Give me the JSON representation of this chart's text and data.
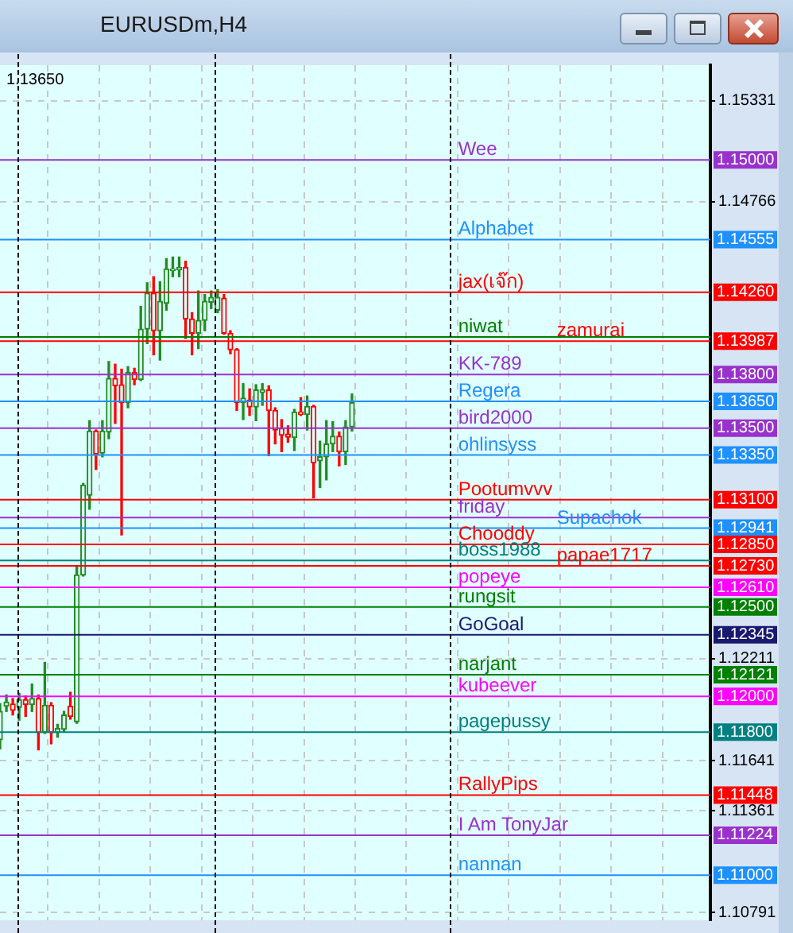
{
  "chart_data": {
    "type": "candlestick",
    "title": "EURUSDm,H4",
    "categories": [
      null,
      null,
      null,
      null,
      null,
      null,
      null,
      null,
      null,
      null,
      null,
      null,
      null,
      null,
      null,
      null,
      null,
      null,
      null,
      null,
      null,
      null,
      null,
      null,
      null,
      null,
      null,
      null,
      null,
      null,
      null,
      null,
      null,
      null,
      null,
      null,
      null,
      null,
      null,
      null,
      null,
      null,
      null,
      null,
      null,
      null,
      null,
      null,
      null,
      null,
      null,
      null,
      null,
      null,
      null,
      null,
      null,
      null,
      null,
      null,
      null,
      null,
      null,
      null,
      null,
      null,
      null,
      null,
      null,
      null,
      null,
      null,
      null,
      null,
      null,
      null,
      null,
      null,
      null,
      null,
      null,
      null,
      null,
      null,
      null,
      null,
      null,
      null,
      null,
      null,
      null,
      null,
      null,
      null,
      null,
      null,
      null,
      null,
      null,
      null,
      null,
      null,
      null,
      null,
      null,
      null,
      null,
      null,
      null,
      null,
      null,
      null
    ],
    "ohlc": [
      [
        1.11758,
        1.11959,
        1.11706,
        1.11916
      ],
      [
        1.11945,
        1.12008,
        1.11916,
        1.11968
      ],
      [
        1.11957,
        1.11988,
        1.11896,
        1.11922
      ],
      [
        1.11939,
        1.12017,
        1.11867,
        1.11982
      ],
      [
        1.11982,
        1.12003,
        1.11888,
        1.11954
      ],
      [
        1.11954,
        1.12069,
        1.11916,
        1.11988
      ],
      [
        1.11988,
        1.12008,
        1.11701,
        1.11798
      ],
      [
        1.11798,
        1.1219,
        1.11793,
        1.11951
      ],
      [
        1.11951,
        1.11965,
        1.11735,
        1.11798
      ],
      [
        1.11798,
        1.11844,
        1.11772,
        1.11821
      ],
      [
        1.11816,
        1.11916,
        1.11801,
        1.11896
      ],
      [
        1.11945,
        1.12023,
        1.11873,
        1.11888
      ],
      [
        1.11859,
        1.1273,
        1.1185,
        1.12679
      ],
      [
        1.12679,
        1.13191,
        1.12673,
        1.13182
      ],
      [
        1.13125,
        1.13542,
        1.13047,
        1.13484
      ],
      [
        1.13484,
        1.1349,
        1.13269,
        1.13355
      ],
      [
        1.13361,
        1.13542,
        1.1334,
        1.13484
      ],
      [
        1.13479,
        1.13873,
        1.13441,
        1.13778
      ],
      [
        1.13778,
        1.13858,
        1.13527,
        1.13737
      ],
      [
        1.13743,
        1.1383,
        1.12903,
        1.13643
      ],
      [
        1.13643,
        1.13844,
        1.13614,
        1.13812
      ],
      [
        1.13812,
        1.13835,
        1.13743,
        1.13772
      ],
      [
        1.13772,
        1.14181,
        1.13766,
        1.14054
      ],
      [
        1.14054,
        1.14313,
        1.13973,
        1.14255
      ],
      [
        1.14255,
        1.14347,
        1.1391,
        1.14045
      ],
      [
        1.14045,
        1.14319,
        1.13881,
        1.14209
      ],
      [
        1.14198,
        1.14448,
        1.1416,
        1.14391
      ],
      [
        1.14382,
        1.14457,
        1.14347,
        1.14391
      ],
      [
        1.14385,
        1.14457,
        1.14347,
        1.14399
      ],
      [
        1.14399,
        1.14434,
        1.14002,
        1.14111
      ],
      [
        1.14111,
        1.14146,
        1.1391,
        1.14031
      ],
      [
        1.14031,
        1.14267,
        1.13945,
        1.14103
      ],
      [
        1.14103,
        1.14247,
        1.14045,
        1.14209
      ],
      [
        1.14204,
        1.14267,
        1.14169,
        1.14232
      ],
      [
        1.1416,
        1.14275,
        1.14146,
        1.14232
      ],
      [
        1.14227,
        1.14247,
        1.14025,
        1.14031
      ],
      [
        1.14031,
        1.14045,
        1.13916,
        1.13939
      ],
      [
        1.13939,
        1.13945,
        1.13599,
        1.13643
      ],
      [
        1.13643,
        1.13749,
        1.13548,
        1.13668
      ],
      [
        1.13657,
        1.1372,
        1.13571,
        1.13619
      ],
      [
        1.13619,
        1.13743,
        1.13542,
        1.13714
      ],
      [
        1.137,
        1.13749,
        1.13628,
        1.13714
      ],
      [
        1.13714,
        1.13737,
        1.13346,
        1.13599
      ],
      [
        1.13599,
        1.13614,
        1.13412,
        1.1349
      ],
      [
        1.13499,
        1.13548,
        1.13369,
        1.13461
      ],
      [
        1.13467,
        1.13513,
        1.13421,
        1.1345
      ],
      [
        1.13447,
        1.13605,
        1.13375,
        1.13591
      ],
      [
        1.13591,
        1.13671,
        1.13571,
        1.13576
      ],
      [
        1.13576,
        1.1368,
        1.1349,
        1.13622
      ],
      [
        1.13622,
        1.13628,
        1.1311,
        1.13306
      ],
      [
        1.13317,
        1.13427,
        1.13168,
        1.1334
      ],
      [
        1.1334,
        1.13542,
        1.13211,
        1.13412
      ],
      [
        1.13412,
        1.13536,
        1.13369,
        1.13455
      ],
      [
        1.13455,
        1.13479,
        1.13289,
        1.13369
      ],
      [
        1.13369,
        1.13542,
        1.13297,
        1.13507
      ],
      [
        1.13507,
        1.13691,
        1.13484,
        1.13643
      ],
      null,
      null,
      null,
      null,
      null,
      null,
      null,
      null,
      null,
      null,
      null,
      null,
      null,
      null,
      null,
      null,
      null,
      null,
      null,
      null,
      null,
      null,
      null,
      null,
      null,
      null,
      null,
      null,
      null,
      null,
      null,
      null,
      null,
      null,
      null,
      null,
      null,
      null,
      null,
      null,
      null,
      null,
      null,
      null,
      null,
      null,
      null,
      null,
      null,
      null,
      null,
      null,
      null,
      null,
      null,
      null
    ],
    "colors": [
      "#228b22",
      "#228b22",
      "#ff0000",
      "#228b22",
      "#ff0000",
      "#228b22",
      "#ff0000",
      "#228b22",
      "#ff0000",
      "#228b22",
      "#228b22",
      "#ff0000",
      "#228b22",
      "#228b22",
      "#228b22",
      "#ff0000",
      "#228b22",
      "#228b22",
      "#ff0000",
      "#ff0000",
      "#228b22",
      "#ff0000",
      "#228b22",
      "#228b22",
      "#ff0000",
      "#228b22",
      "#228b22",
      "#228b22",
      "#228b22",
      "#ff0000",
      "#ff0000",
      "#228b22",
      "#228b22",
      "#228b22",
      "#228b22",
      "#ff0000",
      "#ff0000",
      "#ff0000",
      "#228b22",
      "#ff0000",
      "#228b22",
      "#228b22",
      "#ff0000",
      "#ff0000",
      "#ff0000",
      "#ff0000",
      "#228b22",
      "#ff0000",
      "#228b22",
      "#ff0000",
      "#228b22",
      "#228b22",
      "#228b22",
      "#ff0000",
      "#228b22",
      "#228b22",
      null,
      null,
      null,
      null,
      null,
      null,
      null,
      null,
      null,
      null,
      null,
      null,
      null,
      null,
      null,
      null,
      null,
      null,
      null,
      null,
      null,
      null,
      null,
      null,
      null,
      null,
      null,
      null,
      null,
      null,
      null,
      null,
      null,
      null,
      null,
      null,
      null,
      null,
      null,
      null,
      null,
      null,
      null,
      null,
      null,
      null,
      null,
      null,
      null,
      null,
      null,
      null,
      null,
      null,
      null,
      null
    ],
    "ylim": [
      1.10748,
      1.1553
    ],
    "yticks": [
      1.15331,
      1.14766,
      1.12211,
      1.11641,
      1.11361,
      1.10791
    ],
    "grid": true,
    "ref_lines": [
      {
        "axis": "y",
        "value": 1.15,
        "label": "Wee",
        "color": "#9932cc"
      },
      {
        "axis": "y",
        "value": 1.14555,
        "label": "Alphabet",
        "color": "#1e90ff"
      },
      {
        "axis": "y",
        "value": 1.1426,
        "label": "jax(เจ๊ก)",
        "color": "#ff0000"
      },
      {
        "axis": "y",
        "value": 1.1401,
        "label": "niwat",
        "color": "#008000"
      },
      {
        "axis": "y",
        "value": 1.13987,
        "label": "zamurai",
        "color": "#ff0000"
      },
      {
        "axis": "y",
        "value": 1.138,
        "label": "KK-789",
        "color": "#9932cc"
      },
      {
        "axis": "y",
        "value": 1.1365,
        "label": "Regera",
        "color": "#1e90ff"
      },
      {
        "axis": "y",
        "value": 1.135,
        "label": "bird2000",
        "color": "#9932cc"
      },
      {
        "axis": "y",
        "value": 1.1335,
        "label": "ohlinsyss",
        "color": "#1e90ff"
      },
      {
        "axis": "y",
        "value": 1.131,
        "label": "Pootumvvv",
        "color": "#ff0000"
      },
      {
        "axis": "y",
        "value": 1.13,
        "label": "friday",
        "color": "#9932cc"
      },
      {
        "axis": "y",
        "value": 1.12941,
        "label": "Supachok",
        "color": "#1e90ff"
      },
      {
        "axis": "y",
        "value": 1.1285,
        "label": "Chooddy",
        "color": "#ff0000"
      },
      {
        "axis": "y",
        "value": 1.1276,
        "label": "boss1988",
        "color": "#008080"
      },
      {
        "axis": "y",
        "value": 1.1273,
        "label": "papae1717",
        "color": "#ff0000"
      },
      {
        "axis": "y",
        "value": 1.1261,
        "label": "popeye",
        "color": "#ff00ff"
      },
      {
        "axis": "y",
        "value": 1.125,
        "label": "rungsit",
        "color": "#008000"
      },
      {
        "axis": "y",
        "value": 1.12345,
        "label": "GoGoal",
        "color": "#191970"
      },
      {
        "axis": "y",
        "value": 1.12121,
        "label": "narjant",
        "color": "#008000"
      },
      {
        "axis": "y",
        "value": 1.12,
        "label": "kubeever",
        "color": "#ff00ff"
      },
      {
        "axis": "y",
        "value": 1.118,
        "label": "pagepussy",
        "color": "#008080"
      },
      {
        "axis": "y",
        "value": 1.11448,
        "label": "RallyPips",
        "color": "#ff0000"
      },
      {
        "axis": "y",
        "value": 1.11224,
        "label": "I Am TonyJar",
        "color": "#9932cc"
      },
      {
        "axis": "y",
        "value": 1.11,
        "label": "nannan",
        "color": "#1e90ff"
      }
    ],
    "annotations": [
      "1.13650",
      "1.15000",
      "1.14555",
      "1.14260",
      "1.13987",
      "1.13800",
      "1.13650",
      "1.13500",
      "1.13350",
      "1.13100",
      "1.12941",
      "1.12850",
      "1.12730",
      "1.12610",
      "1.12500",
      "1.12345",
      "1.12121",
      "1.12000",
      "1.11800",
      "1.11448",
      "1.11224",
      "1.11000"
    ]
  }
}
